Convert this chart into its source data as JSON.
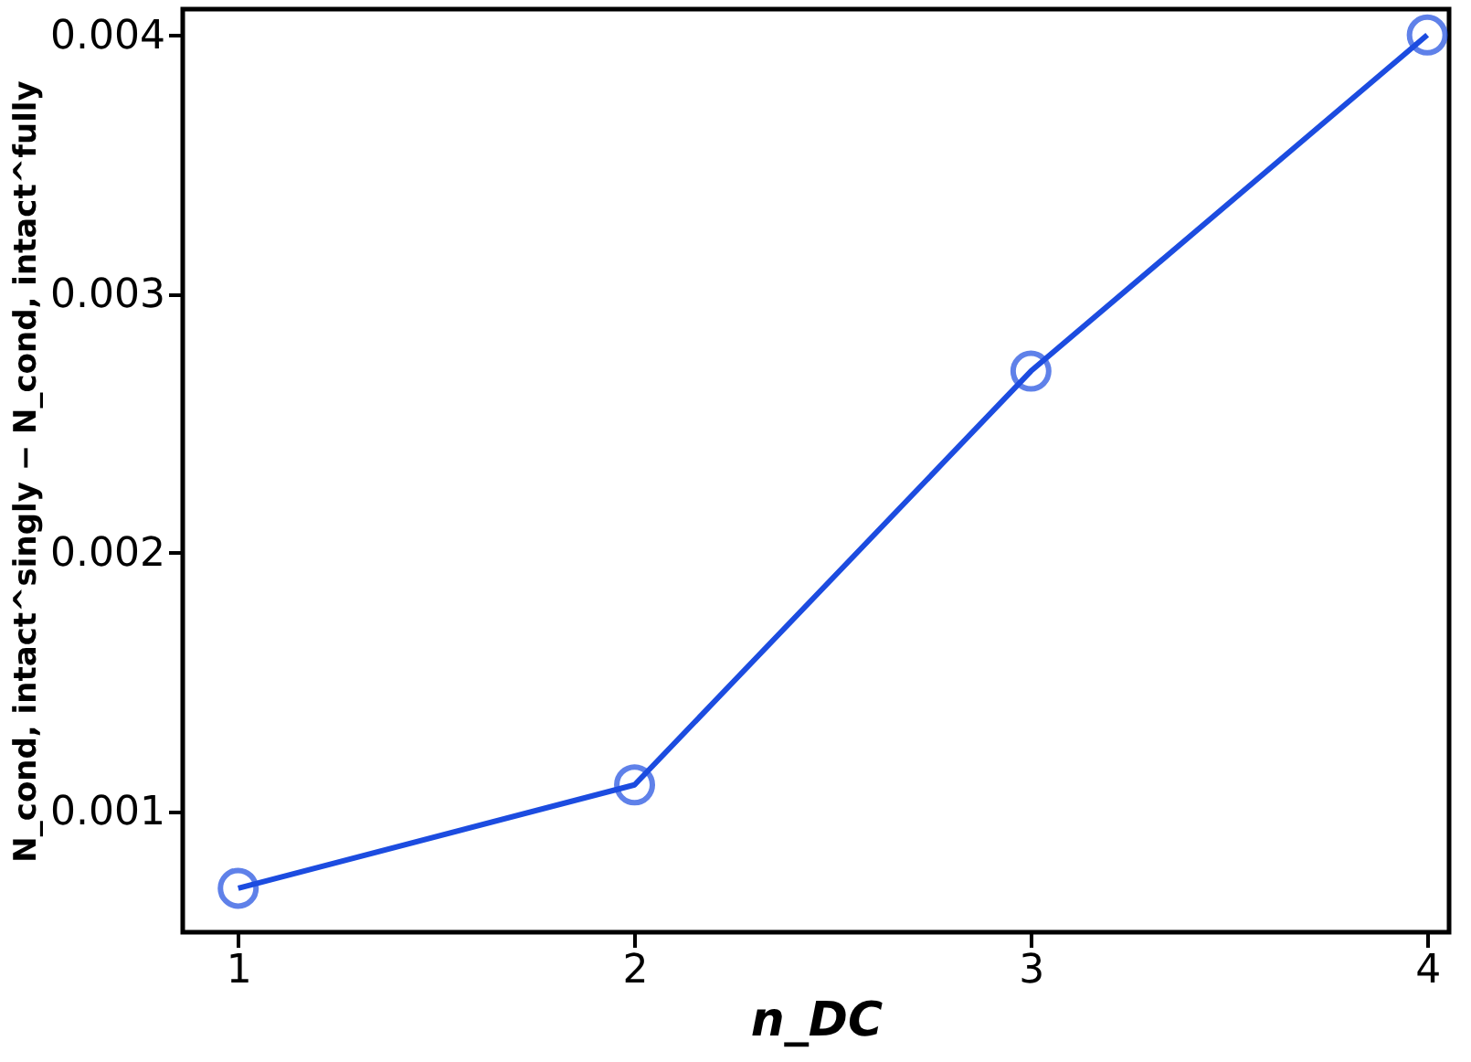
{
  "chart_data": {
    "type": "line",
    "xlabel": "n_DC",
    "ylabel": "N_cond, intact^singly − N_cond, intact^fully",
    "x": [
      1,
      2,
      3,
      4
    ],
    "series": [
      {
        "color": "#1c4ce0",
        "values": [
          0.0007,
          0.0011,
          0.0027,
          0.004
        ]
      }
    ],
    "xlim": [
      0.86,
      4.055
    ],
    "xticks": [
      1,
      2,
      3,
      4
    ],
    "ylim": [
      0.00053,
      0.0041
    ],
    "yticks": [
      0.001,
      0.002,
      0.003,
      0.004
    ],
    "marker": "circle",
    "line_style": "solid",
    "grid": false
  }
}
